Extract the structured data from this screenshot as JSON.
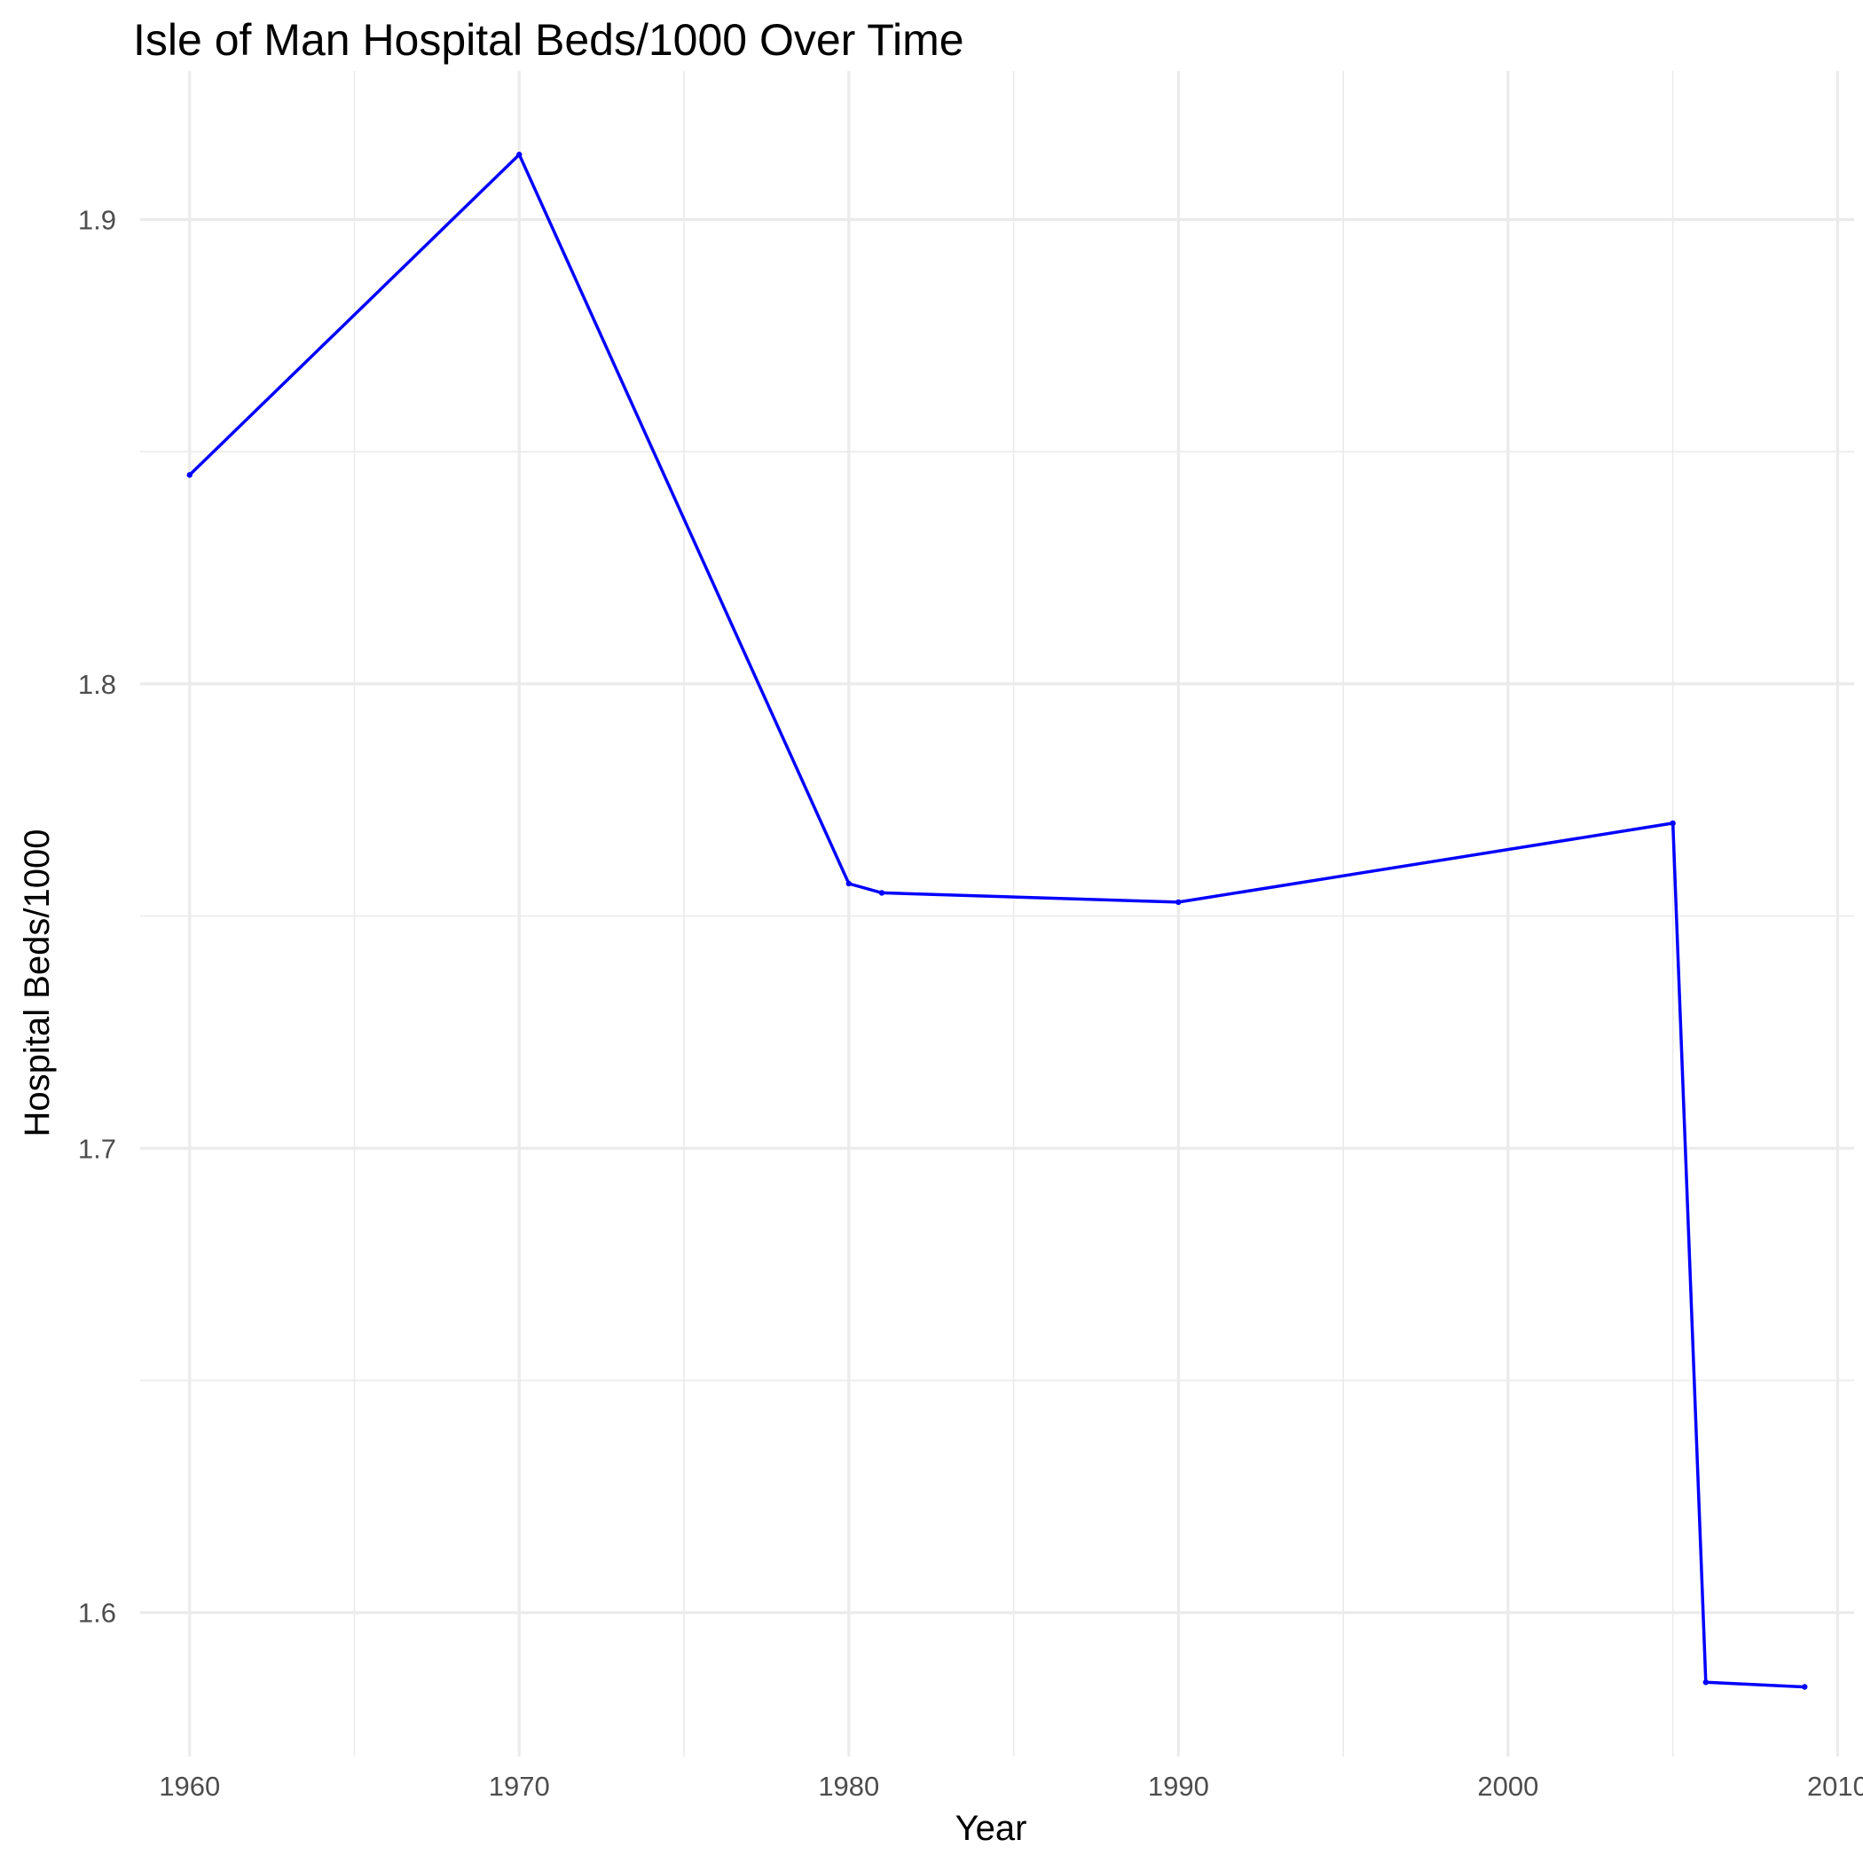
{
  "chart_data": {
    "type": "line",
    "title": "Isle of Man Hospital Beds/1000 Over Time",
    "xlabel": "Year",
    "ylabel": "Hospital Beds/1000",
    "xlim": [
      1958.5,
      2010.5
    ],
    "ylim": [
      1.569,
      1.932
    ],
    "x_ticks": [
      1960,
      1970,
      1980,
      1990,
      2000,
      2010
    ],
    "y_ticks": [
      1.6,
      1.7,
      1.8,
      1.9
    ],
    "grid": true,
    "series": [
      {
        "color": "#0000ff",
        "x": [
          1960,
          1970,
          1980,
          1981,
          1990,
          2005,
          2006,
          2009
        ],
        "y": [
          1.845,
          1.914,
          1.757,
          1.755,
          1.753,
          1.77,
          1.585,
          1.584
        ]
      }
    ]
  }
}
